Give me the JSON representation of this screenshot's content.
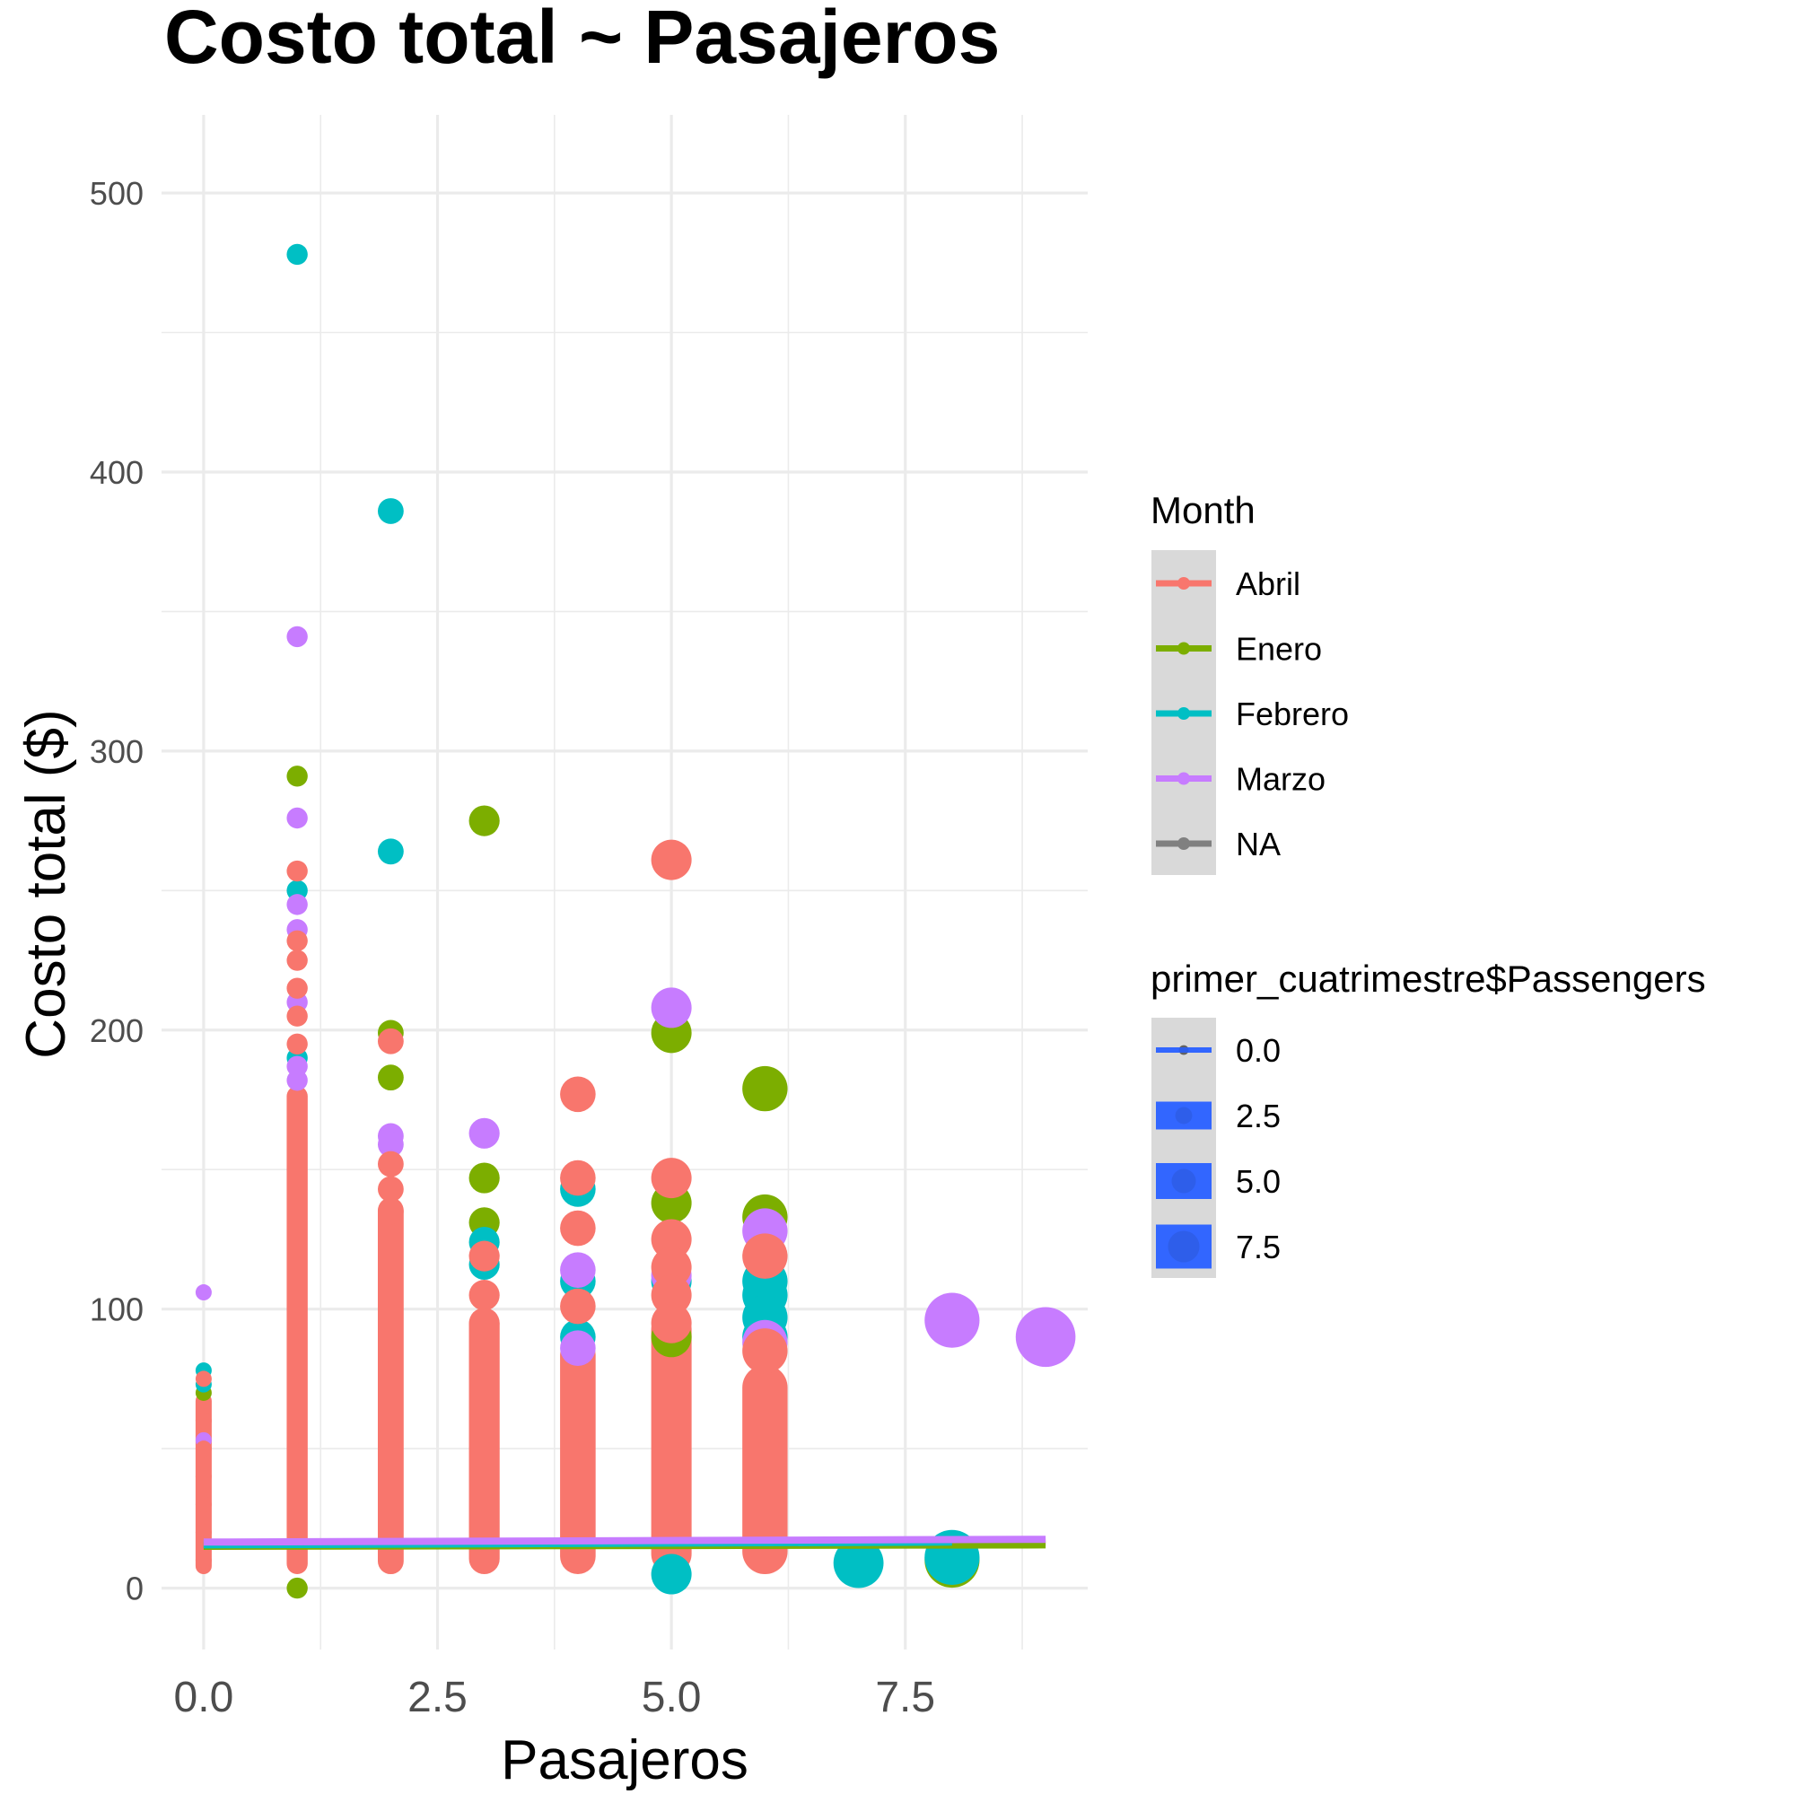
{
  "chart_data": {
    "type": "scatter",
    "title": "Costo total ~ Pasajeros",
    "xlabel": "Pasajeros",
    "ylabel": "Costo total ($)",
    "xlim": [
      -0.45,
      9.45
    ],
    "ylim": [
      -22,
      528
    ],
    "x_ticks": [
      0.0,
      2.5,
      5.0,
      7.5
    ],
    "x_tick_labels": [
      "0.0",
      "2.5",
      "5.0",
      "7.5"
    ],
    "y_ticks": [
      0,
      100,
      200,
      300,
      400,
      500
    ],
    "y_tick_labels": [
      "0",
      "100",
      "200",
      "300",
      "400",
      "500"
    ],
    "grid": true,
    "legend_position": "right",
    "legends": [
      {
        "title": "Month",
        "entries": [
          {
            "label": "Abril",
            "color": "#F8766D"
          },
          {
            "label": "Enero",
            "color": "#7CAE00"
          },
          {
            "label": "Febrero",
            "color": "#00BFC4"
          },
          {
            "label": "Marzo",
            "color": "#C77CFF"
          },
          {
            "label": "NA",
            "color": "#808080"
          }
        ]
      },
      {
        "title": "primer_cuatrimestre$Passengers",
        "entries": [
          {
            "label": "0.0",
            "value": 0.0
          },
          {
            "label": "2.5",
            "value": 2.5
          },
          {
            "label": "5.0",
            "value": 5.0
          },
          {
            "label": "7.5",
            "value": 7.5
          }
        ],
        "color": "#3366FF"
      }
    ],
    "series": [
      {
        "name": "Abril",
        "color": "#F8766D",
        "points": [
          [
            0,
            75
          ],
          [
            0,
            60
          ],
          [
            0,
            50
          ],
          [
            0,
            40
          ],
          [
            0,
            30
          ],
          [
            0,
            20
          ],
          [
            0,
            10
          ],
          [
            1,
            257
          ],
          [
            1,
            232
          ],
          [
            1,
            225
          ],
          [
            1,
            215
          ],
          [
            1,
            205
          ],
          [
            1,
            195
          ],
          [
            2,
            196
          ],
          [
            2,
            152
          ],
          [
            2,
            143
          ],
          [
            2,
            135
          ],
          [
            3,
            119
          ],
          [
            3,
            105
          ],
          [
            3,
            95
          ],
          [
            4,
            177
          ],
          [
            4,
            147
          ],
          [
            4,
            129
          ],
          [
            4,
            101
          ],
          [
            5,
            261
          ],
          [
            5,
            147
          ],
          [
            5,
            125
          ],
          [
            5,
            115
          ],
          [
            5,
            105
          ],
          [
            5,
            95
          ],
          [
            6,
            119
          ],
          [
            6,
            85
          ]
        ],
        "ranges": [
          [
            0,
            5,
            70
          ],
          [
            1,
            5,
            180
          ],
          [
            2,
            5,
            140
          ],
          [
            3,
            5,
            100
          ],
          [
            4,
            5,
            90
          ],
          [
            5,
            5,
            100
          ],
          [
            6,
            5,
            80
          ]
        ],
        "fit": [
          [
            0,
            15.0
          ],
          [
            9,
            16.5
          ]
        ]
      },
      {
        "name": "Enero",
        "color": "#7CAE00",
        "points": [
          [
            0,
            70
          ],
          [
            1,
            291
          ],
          [
            1,
            0
          ],
          [
            2,
            199
          ],
          [
            2,
            183
          ],
          [
            3,
            275
          ],
          [
            3,
            147
          ],
          [
            3,
            131
          ],
          [
            5,
            199
          ],
          [
            5,
            138
          ],
          [
            5,
            90
          ],
          [
            6,
            179
          ],
          [
            6,
            133
          ],
          [
            8,
            10
          ]
        ],
        "fit": [
          [
            0,
            15.0
          ],
          [
            9,
            15.5
          ]
        ]
      },
      {
        "name": "Febrero",
        "color": "#00BFC4",
        "points": [
          [
            0,
            78
          ],
          [
            0,
            73
          ],
          [
            1,
            478
          ],
          [
            1,
            250
          ],
          [
            1,
            190
          ],
          [
            2,
            386
          ],
          [
            2,
            264
          ],
          [
            3,
            124
          ],
          [
            3,
            116
          ],
          [
            4,
            143
          ],
          [
            4,
            110
          ],
          [
            4,
            90
          ],
          [
            5,
            110
          ],
          [
            5,
            5
          ],
          [
            6,
            110
          ],
          [
            6,
            105
          ],
          [
            6,
            97
          ],
          [
            6,
            90
          ],
          [
            7,
            9
          ],
          [
            8,
            11
          ]
        ],
        "fit": [
          [
            0,
            15.5
          ],
          [
            8,
            16.5
          ]
        ]
      },
      {
        "name": "Marzo",
        "color": "#C77CFF",
        "points": [
          [
            0,
            106
          ],
          [
            0,
            53
          ],
          [
            1,
            341
          ],
          [
            1,
            276
          ],
          [
            1,
            245
          ],
          [
            1,
            236
          ],
          [
            1,
            210
          ],
          [
            1,
            187
          ],
          [
            1,
            182
          ],
          [
            2,
            162
          ],
          [
            2,
            159
          ],
          [
            3,
            163
          ],
          [
            4,
            114
          ],
          [
            4,
            86
          ],
          [
            5,
            208
          ],
          [
            5,
            112
          ],
          [
            6,
            128
          ],
          [
            6,
            88
          ],
          [
            8,
            96
          ],
          [
            9,
            90
          ]
        ],
        "fit": [
          [
            0,
            16.5
          ],
          [
            9,
            17.5
          ]
        ]
      }
    ]
  }
}
